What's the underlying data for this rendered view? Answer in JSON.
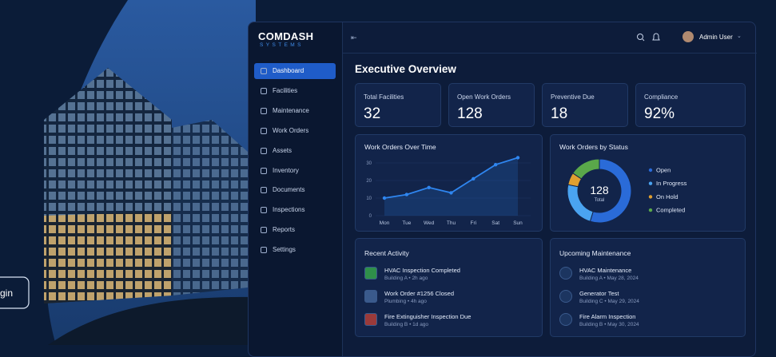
{
  "login": "gin",
  "brand": {
    "name": "COMDASH",
    "sub": "SYSTEMS"
  },
  "nav": [
    "Dashboard",
    "Facilities",
    "Maintenance",
    "Work Orders",
    "Assets",
    "Inventory",
    "Documents",
    "Inspections",
    "Reports",
    "Settings"
  ],
  "header": {
    "user": "Admin User",
    "title": "Executive Overview"
  },
  "kpis": [
    {
      "label": "Total Facilities",
      "value": "32"
    },
    {
      "label": "Open Work Orders",
      "value": "128"
    },
    {
      "label": "Preventive Due",
      "value": "18"
    },
    {
      "label": "Compliance",
      "value": "92%"
    }
  ],
  "activity": {
    "title": "Recent Activity",
    "items": [
      {
        "title": "HVAC Inspection Completed",
        "sub": "Building A • 2h ago"
      },
      {
        "title": "Work Order #1256 Closed",
        "sub": "Plumbing • 4h ago"
      },
      {
        "title": "Fire Extinguisher Inspection Due",
        "sub": "Building B • 1d ago"
      }
    ]
  },
  "maintenance": {
    "title": "Upcoming Maintenance",
    "items": [
      {
        "title": "HVAC Maintenance",
        "sub": "Building A • May 28, 2024"
      },
      {
        "title": "Generator Test",
        "sub": "Building C • May 29, 2024"
      },
      {
        "title": "Fire Alarm Inspection",
        "sub": "Building B • May 30, 2024"
      }
    ]
  },
  "chart_data": [
    {
      "type": "line",
      "title": "Work Orders Over Time",
      "categories": [
        "Mon",
        "Tue",
        "Wed",
        "Thu",
        "Fri",
        "Sat",
        "Sun"
      ],
      "values": [
        10,
        12,
        16,
        13,
        21,
        29,
        33
      ],
      "color": "#2f86f0",
      "ylim": [
        0,
        35
      ],
      "yticks": [
        0,
        10,
        20,
        30
      ]
    },
    {
      "type": "pie",
      "title": "Work Orders by Status",
      "categories": [
        "Open",
        "In Progress",
        "On Hold",
        "Completed"
      ],
      "values": [
        70,
        30,
        8,
        20
      ],
      "colors": [
        "#2a6bd8",
        "#4aa3f0",
        "#e0a030",
        "#5aa84a"
      ],
      "total": 128,
      "center_label": "Total"
    }
  ]
}
